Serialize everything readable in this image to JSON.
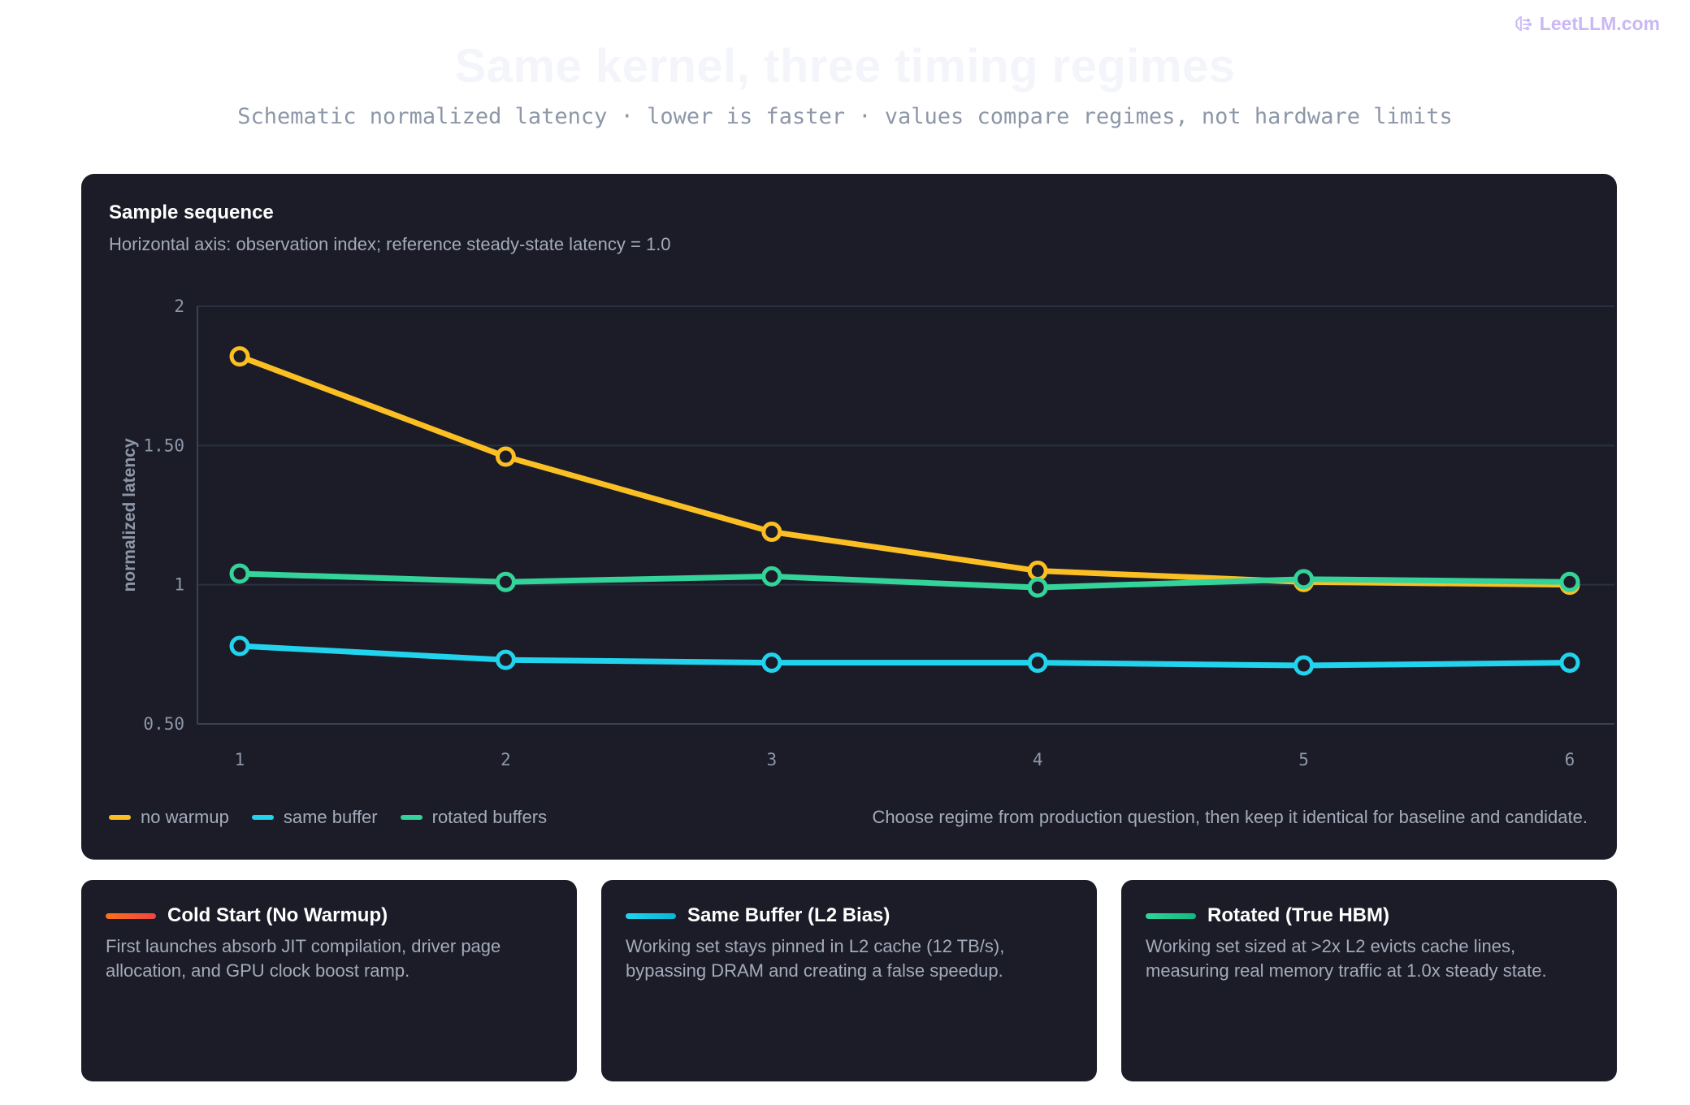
{
  "brand": "LeetLLM.com",
  "title": "Same kernel, three timing regimes",
  "subtitle": "Schematic normalized latency · lower is faster · values compare regimes, not hardware limits",
  "panel": {
    "title": "Sample sequence",
    "subtitle": "Horizontal axis: observation index; reference steady-state latency = 1.0",
    "note": "Choose regime from production question, then keep it identical for baseline and candidate."
  },
  "chart_data": {
    "type": "line",
    "title": "Sample sequence",
    "xlabel": "",
    "ylabel": "normalized latency",
    "x": [
      1,
      2,
      3,
      4,
      5,
      6
    ],
    "ylim": [
      0.5,
      2
    ],
    "yticks": [
      0.5,
      1,
      1.5,
      2
    ],
    "ytick_labels": [
      "0.50",
      "1",
      "1.50",
      "2"
    ],
    "grid": true,
    "legend": "bottom-left",
    "series": [
      {
        "name": "no warmup",
        "color": "#fbbf24",
        "values": [
          1.82,
          1.46,
          1.19,
          1.05,
          1.01,
          1.0
        ]
      },
      {
        "name": "same buffer",
        "color": "#22d3ee",
        "values": [
          0.78,
          0.73,
          0.72,
          0.72,
          0.71,
          0.72
        ]
      },
      {
        "name": "rotated buffers",
        "color": "#34d399",
        "values": [
          1.04,
          1.01,
          1.03,
          0.99,
          1.02,
          1.01
        ]
      }
    ]
  },
  "cards": [
    {
      "title": "Cold Start (No Warmup)",
      "line1": "First launches absorb JIT compilation, driver page",
      "line2": "allocation, and GPU clock boost ramp.",
      "gradient": [
        "#f97316",
        "#ef4444"
      ]
    },
    {
      "title": "Same Buffer (L2 Bias)",
      "line1": "Working set stays pinned in L2 cache (12 TB/s),",
      "line2": "bypassing DRAM and creating a false speedup.",
      "gradient": [
        "#22d3ee",
        "#06b6d4"
      ]
    },
    {
      "title": "Rotated (True HBM)",
      "line1": "Working set sized at >2x L2 evicts cache lines,",
      "line2": "measuring real memory traffic at 1.0x steady state.",
      "gradient": [
        "#34d399",
        "#10b981"
      ]
    }
  ]
}
